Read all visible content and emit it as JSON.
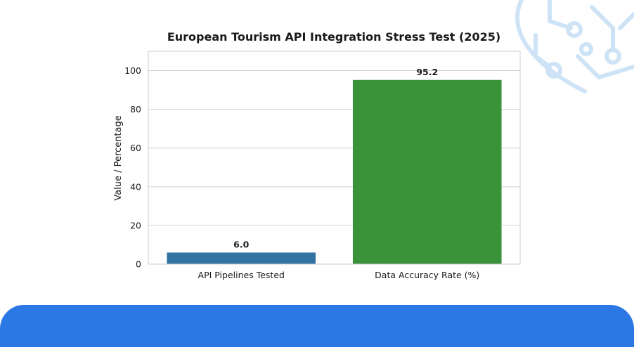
{
  "theme": {
    "bar_colors": [
      "#3274a1",
      "#3a923a"
    ],
    "band_color": "#2b78e4",
    "deco_color": "#cfe3f6",
    "grid_color": "#d0d0d0",
    "frame_color": "#cccccc"
  },
  "chart_data": {
    "type": "bar",
    "title": "European Tourism API Integration Stress Test (2025)",
    "xlabel": "",
    "ylabel": "Value / Percentage",
    "categories": [
      "API Pipelines Tested",
      "Data Accuracy Rate (%)"
    ],
    "values": [
      6.0,
      95.2
    ],
    "value_labels": [
      "6.0",
      "95.2"
    ],
    "ylim": [
      0,
      110
    ],
    "yticks": [
      0,
      20,
      40,
      60,
      80,
      100
    ],
    "grid": true,
    "legend": "none"
  }
}
